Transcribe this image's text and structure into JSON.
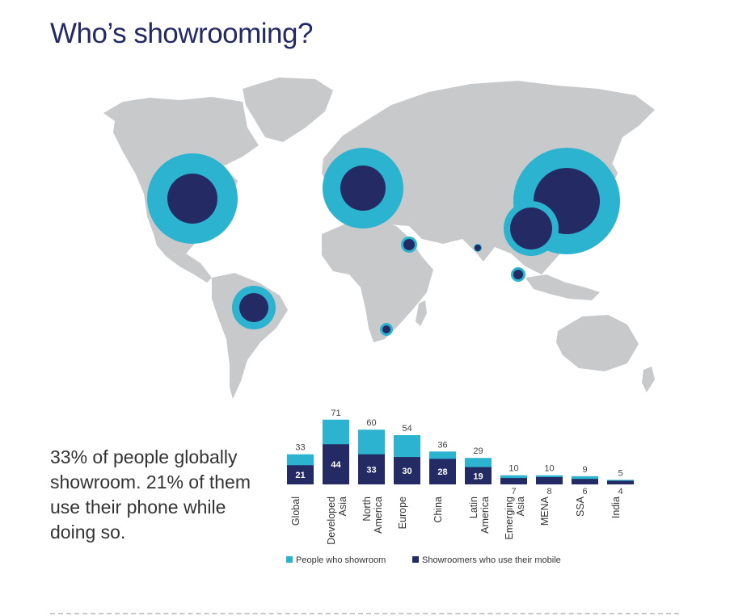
{
  "page": {
    "title": "Who’s showrooming?",
    "summary": "33% of people globally showroom. 21% of them use their phone while doing so."
  },
  "colors": {
    "people_who_showroom": "#2bb3cf",
    "showroomers_mobile": "#242a64",
    "map_land": "#c8c9ca",
    "title": "#242a64"
  },
  "chart_data": {
    "type": "bar",
    "stacking": "overlay",
    "categories": [
      "Global",
      "Developed Asia",
      "North America",
      "Europe",
      "China",
      "Latin America",
      "Emerging Asia",
      "MENA",
      "SSA",
      "India"
    ],
    "category_lines": [
      [
        "Global"
      ],
      [
        "Developed",
        "Asia"
      ],
      [
        "North",
        "America"
      ],
      [
        "Europe"
      ],
      [
        "China"
      ],
      [
        "Latin",
        "America"
      ],
      [
        "Emerging",
        "Asia"
      ],
      [
        "MENA"
      ],
      [
        "SSA"
      ],
      [
        "India"
      ]
    ],
    "series": [
      {
        "name": "People who showroom",
        "color": "#2bb3cf",
        "values": [
          33,
          71,
          60,
          54,
          36,
          29,
          10,
          10,
          9,
          5
        ]
      },
      {
        "name": "Showroomers who use their mobile",
        "color": "#242a64",
        "values": [
          21,
          44,
          33,
          30,
          28,
          19,
          7,
          8,
          6,
          4
        ]
      }
    ],
    "legend": {
      "position": "bottom",
      "entries": [
        "People who showroom",
        "Showroomers who use their mobile"
      ]
    },
    "grid": false,
    "ylim": [
      0,
      71
    ]
  },
  "map": {
    "bubbles": [
      {
        "region": "North America",
        "outer": 60,
        "inner": 33
      },
      {
        "region": "Latin America",
        "outer": 29,
        "inner": 19
      },
      {
        "region": "Europe",
        "outer": 54,
        "inner": 30
      },
      {
        "region": "MENA",
        "outer": 10,
        "inner": 8
      },
      {
        "region": "SSA",
        "outer": 9,
        "inner": 6
      },
      {
        "region": "India",
        "outer": 5,
        "inner": 4
      },
      {
        "region": "China",
        "outer": 36,
        "inner": 28
      },
      {
        "region": "Developed Asia",
        "outer": 71,
        "inner": 44
      },
      {
        "region": "Emerging Asia",
        "outer": 10,
        "inner": 7
      }
    ]
  }
}
